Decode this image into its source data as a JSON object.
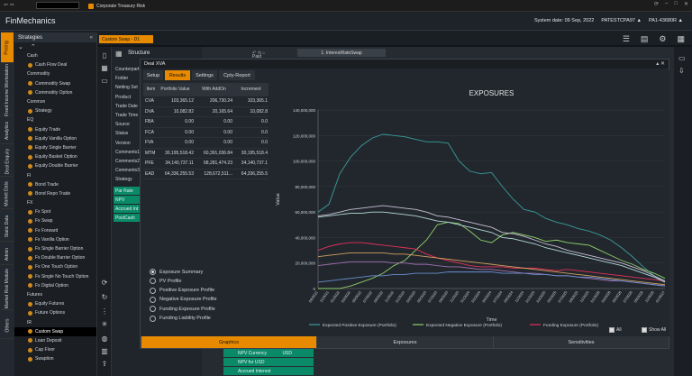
{
  "browser": {
    "tab_title": "Corporate Treasury Risk"
  },
  "app": {
    "name": "FinMechanics",
    "system_date": "System date: 09 Sep, 2022",
    "user": "PATESTCPA97 ▲",
    "session": "PA1-43680R ▲"
  },
  "vtabs": [
    "Pricing",
    "Fixed Income Workstation",
    "Analytics",
    "Deal Enquiry",
    "Market Data",
    "Static Data",
    "Admin",
    "Market Risk Module",
    "Others"
  ],
  "strategies": {
    "title": "Strategies",
    "items": [
      {
        "label": "Cash",
        "level": 1,
        "group": true
      },
      {
        "label": "Cash Flow Deal",
        "level": 2
      },
      {
        "label": "Commodity",
        "level": 1,
        "group": true
      },
      {
        "label": "Commodity Swap",
        "level": 2
      },
      {
        "label": "Commodity Option",
        "level": 2
      },
      {
        "label": "Common",
        "level": 1,
        "group": true
      },
      {
        "label": "Strategy",
        "level": 2
      },
      {
        "label": "EQ",
        "level": 1,
        "group": true
      },
      {
        "label": "Equity Trade",
        "level": 2
      },
      {
        "label": "Equity Vanilla Option",
        "level": 2
      },
      {
        "label": "Equity Single Barrier",
        "level": 2
      },
      {
        "label": "Equity Basket Option",
        "level": 2
      },
      {
        "label": "Equity Double Barrier",
        "level": 2
      },
      {
        "label": "FI",
        "level": 1,
        "group": true
      },
      {
        "label": "Bond Trade",
        "level": 2
      },
      {
        "label": "Bond Repo Trade",
        "level": 2
      },
      {
        "label": "FX",
        "level": 1,
        "group": true
      },
      {
        "label": "Fx Spot",
        "level": 2
      },
      {
        "label": "Fx Swap",
        "level": 2
      },
      {
        "label": "Fx Forward",
        "level": 2
      },
      {
        "label": "Fx Vanilla Option",
        "level": 2
      },
      {
        "label": "Fx Single Barrier Option",
        "level": 2
      },
      {
        "label": "Fx Double Barrier Option",
        "level": 2
      },
      {
        "label": "Fx One Touch Option",
        "level": 2
      },
      {
        "label": "Fx Single No Touch Option",
        "level": 2
      },
      {
        "label": "Fx Digital Option",
        "level": 2
      },
      {
        "label": "Futures",
        "level": 1,
        "group": true
      },
      {
        "label": "Equity Futures",
        "level": 2
      },
      {
        "label": "Future Options",
        "level": 2
      },
      {
        "label": "IR",
        "level": 1,
        "group": true
      },
      {
        "label": "Custom Swap",
        "level": 2,
        "selected": true
      },
      {
        "label": "Loan Deposit",
        "level": 2
      },
      {
        "label": "Cap Floor",
        "level": 2
      },
      {
        "label": "Swaption",
        "level": 2
      }
    ]
  },
  "doc_tab": "Custom Swap - D1",
  "structure": {
    "title": "Structure",
    "fields": [
      "Counterpart",
      "Folder",
      "Netting Set",
      "Product",
      "Trade Date",
      "Trade Time",
      "Source",
      "Status",
      "Version",
      "Comments1",
      "Comments2",
      "Comments3",
      "Strategy"
    ],
    "green_rows": [
      "Par Rate",
      "NPV",
      "Accrued Int",
      "PostCash"
    ]
  },
  "ir_tab": "1. InterestRateSwap",
  "right_partial": "Paid",
  "dialog": {
    "title": "Deal XVA",
    "tabs": [
      "Setup",
      "Results",
      "Settings",
      "Cpty-Report"
    ],
    "active_tab": "Results",
    "table": {
      "headers": [
        "Item",
        "Portfolio Value",
        "With AddOn",
        "Increment"
      ],
      "rows": [
        [
          "CVA",
          "103,365.12",
          "206,730.24",
          "103,365.1"
        ],
        [
          "DVA",
          "10,082.82",
          "20,165.64",
          "10,082.8"
        ],
        [
          "FBA",
          "0.00",
          "0.00",
          "0.0"
        ],
        [
          "FCA",
          "0.00",
          "0.00",
          "0.0"
        ],
        [
          "FVA",
          "0.00",
          "0.00",
          "0.0"
        ],
        [
          "MTM",
          "30,195,518.42",
          "60,391,036.84",
          "30,195,518.4"
        ],
        [
          "PFE",
          "34,140,737.11",
          "68,281,474.23",
          "34,140,737.1"
        ],
        [
          "EAD",
          "64,336,255.53",
          "128,672,511...",
          "64,336,255.5"
        ]
      ]
    },
    "radios": [
      "Exposure Summary",
      "PV Profile",
      "Positive Exposure Profile",
      "Negative Exposure Profile",
      "Funding Exposure Profile",
      "Funding Liability Profile"
    ],
    "radio_selected": 0,
    "bottom_tabs": [
      "Graphics",
      "Exposures",
      "Sensitivities"
    ],
    "bottom_active": 0,
    "check_all": "All",
    "show_all": "Show All"
  },
  "chart_data": {
    "type": "line",
    "title": "EXPOSURES",
    "xlabel": "Time",
    "ylabel": "Value",
    "ylim": [
      0,
      140000000
    ],
    "yticks": [
      "0",
      "20,000,000",
      "40,000,000",
      "60,000,000",
      "80,000,000",
      "100,000,000",
      "120,000,000",
      "140,000,000"
    ],
    "x": [
      "09/2021",
      "11/2021",
      "01/2022",
      "03/2022",
      "05/2022",
      "07/2022",
      "09/2022",
      "11/2022",
      "01/2023",
      "03/2023",
      "05/2023",
      "07/2023",
      "09/2023",
      "11/2023",
      "01/2024",
      "03/2024",
      "05/2024",
      "07/2024",
      "09/2024",
      "11/2024",
      "01/2025",
      "03/2025",
      "05/2025",
      "07/2025",
      "09/2025",
      "11/2025",
      "01/2026",
      "03/2026",
      "05/2026",
      "07/2026",
      "09/2026",
      "11/2026",
      "01/2027"
    ],
    "series": [
      {
        "name": "Expected Positive Exposure (Portfolio)",
        "color": "#3a9c9a",
        "values": [
          60,
          66,
          90,
          103,
          112,
          118,
          121,
          120,
          119,
          117,
          115,
          115,
          114,
          100,
          92,
          90,
          91,
          80,
          70,
          62,
          60,
          55,
          52,
          50,
          47,
          45,
          42,
          38,
          32,
          25,
          17,
          10,
          5
        ]
      },
      {
        "name": "Expected Negative Exposure (Portfolio)",
        "color": "#8fd16a",
        "values": [
          0,
          0,
          0,
          2,
          5,
          8,
          12,
          18,
          22,
          30,
          38,
          50,
          52,
          51,
          45,
          38,
          36,
          42,
          44,
          42,
          40,
          37,
          38,
          36,
          35,
          34,
          30,
          26,
          22,
          19,
          15,
          12,
          8
        ]
      },
      {
        "name": "Funding Exposure (Portfolio)",
        "color": "#e3305a",
        "values": [
          30,
          33,
          35,
          36,
          36,
          35,
          34,
          33,
          32,
          31,
          27,
          24,
          22,
          20,
          18,
          17,
          17,
          17,
          16,
          16,
          16,
          15,
          14,
          15,
          14,
          13,
          12,
          11,
          10,
          9,
          8,
          7,
          6
        ]
      },
      {
        "name": "",
        "color": "#c9c0d8",
        "values": [
          57,
          58,
          60,
          62,
          63,
          64,
          65,
          64,
          63,
          62,
          60,
          57,
          56,
          54,
          52,
          50,
          48,
          44,
          43,
          41,
          38,
          35,
          33,
          30,
          28,
          26,
          24,
          22,
          20,
          17,
          14,
          10,
          6
        ]
      },
      {
        "name": "",
        "color": "#b4d8d8",
        "values": [
          56,
          57,
          58,
          59,
          59,
          60,
          60,
          59,
          58,
          57,
          55,
          53,
          52,
          50,
          48,
          46,
          44,
          40,
          39,
          37,
          35,
          32,
          30,
          28,
          26,
          24,
          22,
          20,
          18,
          15,
          12,
          9,
          5
        ]
      },
      {
        "name": "",
        "color": "#d4a060",
        "values": [
          25,
          26,
          27,
          28,
          28,
          28,
          28,
          27,
          27,
          26,
          25,
          24,
          23,
          22,
          21,
          20,
          19,
          18,
          17,
          16,
          15,
          14,
          13,
          12,
          11,
          10,
          9,
          8,
          7,
          6,
          5,
          4,
          3
        ]
      },
      {
        "name": "",
        "color": "#a070b0",
        "values": [
          18,
          19,
          20,
          21,
          21,
          21,
          21,
          20,
          20,
          19,
          19,
          18,
          17,
          17,
          16,
          15,
          15,
          14,
          13,
          12,
          12,
          11,
          10,
          10,
          9,
          8,
          7,
          6,
          6,
          5,
          4,
          3,
          2
        ]
      },
      {
        "name": "",
        "color": "#6a8fd0",
        "values": [
          5,
          6,
          7,
          8,
          9,
          10,
          10,
          11,
          11,
          12,
          12,
          12,
          13,
          13,
          13,
          13,
          13,
          12,
          12,
          12,
          11,
          11,
          10,
          10,
          9,
          9,
          8,
          7,
          6,
          5,
          4,
          3,
          2
        ]
      }
    ]
  },
  "bottom_rows": [
    "NPV Currency",
    "NPV for USD",
    "Accrued Interest"
  ],
  "bottom_rows_value": "USD"
}
